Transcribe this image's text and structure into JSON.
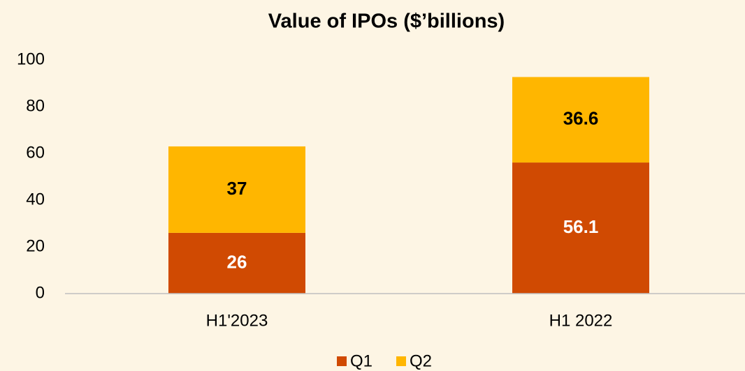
{
  "chart_data": {
    "type": "stacked_bar",
    "title": "Value of IPOs ($’billions)",
    "categories": [
      "H1'2023",
      "H1 2022"
    ],
    "series": [
      {
        "name": "Q1",
        "color": "#d04a02",
        "label_color": "#ffffff",
        "values": [
          26,
          56.1
        ]
      },
      {
        "name": "Q2",
        "color": "#ffb600",
        "label_color": "#000000",
        "values": [
          37,
          36.6
        ]
      }
    ],
    "ylim": [
      0,
      100
    ],
    "yticks": [
      0,
      20,
      40,
      60,
      80,
      100
    ],
    "grid": false,
    "legend": "bottom"
  }
}
